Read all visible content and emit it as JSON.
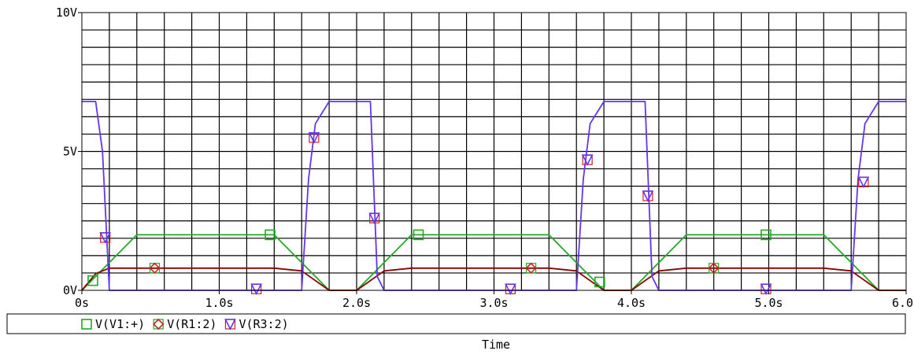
{
  "chart_data": {
    "type": "line",
    "xlabel": "Time",
    "ylabel": "",
    "xlim": [
      0,
      6.0
    ],
    "ylim": [
      0,
      10
    ],
    "grid": true,
    "x_ticks": [
      {
        "value": 0,
        "label": "0s"
      },
      {
        "value": 1.0,
        "label": "1.0s"
      },
      {
        "value": 2.0,
        "label": "2.0s"
      },
      {
        "value": 3.0,
        "label": "3.0s"
      },
      {
        "value": 4.0,
        "label": "4.0s"
      },
      {
        "value": 5.0,
        "label": "5.0s"
      },
      {
        "value": 6.0,
        "label": "6.0s"
      }
    ],
    "y_ticks": [
      {
        "value": 0,
        "label": "0V"
      },
      {
        "value": 5,
        "label": "5V"
      },
      {
        "value": 10,
        "label": "10V"
      }
    ],
    "legend_position": "bottom",
    "series": [
      {
        "name": "V(V1:+)",
        "color": "#22aa22",
        "marker": "square",
        "x": [
          0,
          0.4,
          1.4,
          1.5,
          1.6,
          1.8,
          2.0,
          2.4,
          3.4,
          3.5,
          3.6,
          3.8,
          4.0,
          4.4,
          5.4,
          5.5,
          5.6,
          5.8,
          6.0
        ],
        "y": [
          0,
          2.0,
          2.0,
          1.5,
          1.0,
          0,
          0,
          2.0,
          2.0,
          1.5,
          1.0,
          0,
          0,
          2.0,
          2.0,
          1.5,
          1.0,
          0,
          0
        ],
        "markers_x": [
          0.08,
          1.37,
          2.45,
          3.77,
          4.98
        ],
        "markers_y": [
          0.35,
          2.0,
          2.0,
          0.3,
          2.0
        ]
      },
      {
        "name": "V(R1:2)",
        "color": "#880000",
        "marker": "diamond",
        "x": [
          0,
          0.1,
          0.2,
          1.4,
          1.6,
          1.8,
          2.0,
          2.2,
          2.4,
          3.4,
          3.6,
          3.8,
          4.0,
          4.2,
          4.4,
          5.4,
          5.6,
          5.8,
          6.0
        ],
        "y": [
          0,
          0.6,
          0.8,
          0.8,
          0.7,
          0,
          0,
          0.7,
          0.8,
          0.8,
          0.7,
          0,
          0,
          0.7,
          0.8,
          0.8,
          0.7,
          0,
          0
        ],
        "markers_x": [
          0.53,
          3.27,
          4.6
        ],
        "markers_y": [
          0.8,
          0.8,
          0.8
        ]
      },
      {
        "name": "V(R3:2)",
        "color": "#6633ee",
        "marker": "triangle-down",
        "x": [
          0,
          0.1,
          0.15,
          0.2,
          1.6,
          1.65,
          1.7,
          1.8,
          2.1,
          2.15,
          2.2,
          3.6,
          3.65,
          3.7,
          3.8,
          4.1,
          4.15,
          4.2,
          5.6,
          5.65,
          5.7,
          5.8,
          6.0
        ],
        "y": [
          6.8,
          6.8,
          5.0,
          0,
          0,
          4.0,
          6.0,
          6.8,
          6.8,
          0.5,
          0,
          0,
          4.0,
          6.0,
          6.8,
          6.8,
          0.5,
          0,
          0,
          4.0,
          6.0,
          6.8,
          6.8
        ],
        "markers_x": [
          0.17,
          1.27,
          1.69,
          2.13,
          3.12,
          3.68,
          4.12,
          4.98,
          5.69
        ],
        "markers_y": [
          1.9,
          0.05,
          5.5,
          2.6,
          0.05,
          4.7,
          3.4,
          0.05,
          3.9
        ]
      }
    ]
  }
}
